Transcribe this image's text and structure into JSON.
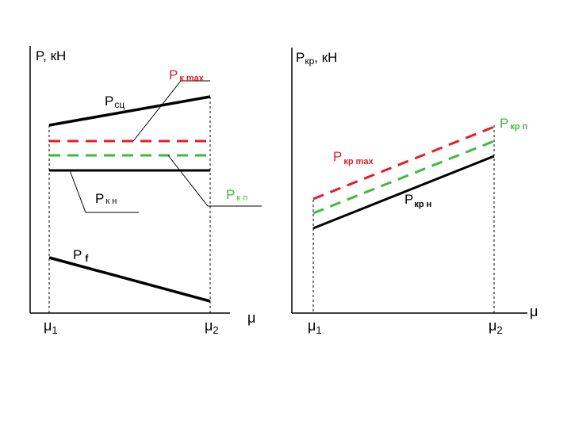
{
  "colors": {
    "axis": "#000000",
    "red": "#e31e24",
    "green": "#3fba3a",
    "black": "#000000"
  },
  "left_chart": {
    "y_axis_label": "P, кН",
    "x_axis_label": "μ",
    "mu1": {
      "main": "μ",
      "sub": "1"
    },
    "mu2": {
      "main": "μ",
      "sub": "2"
    },
    "curves": {
      "p_k_max": {
        "main": "P",
        "sub": "к max"
      },
      "p_sc": {
        "main": "P",
        "sub": "сц"
      },
      "p_k_n": {
        "main": "P",
        "sub": "к н"
      },
      "p_k_p": {
        "main": "P",
        "sub": "к п"
      },
      "p_f": {
        "main": "P",
        "sub": "f"
      }
    }
  },
  "right_chart": {
    "y_axis_label": {
      "main": "P",
      "sub": "кр",
      "suffix": ", кН"
    },
    "x_axis_label": "μ",
    "mu1": {
      "main": "μ",
      "sub": "1"
    },
    "mu2": {
      "main": "μ",
      "sub": "2"
    },
    "curves": {
      "p_kr_p": {
        "main": "P",
        "sub": "кр п"
      },
      "p_kr_max": {
        "main": "P",
        "sub": "кр max"
      },
      "p_kr_n": {
        "main": "P",
        "sub": "кр н"
      }
    }
  }
}
